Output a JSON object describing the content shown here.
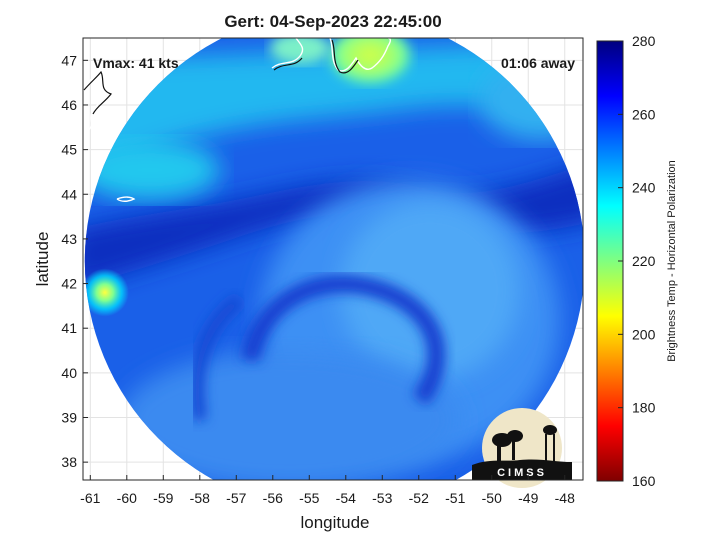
{
  "title": "Gert: 04-Sep-2023 22:45:00",
  "annotations": {
    "vmax": "Vmax: 41 kts",
    "time_away": "01:06 away"
  },
  "axes": {
    "xlabel": "longitude",
    "ylabel": "latitude",
    "xlim": [
      -61.2,
      -47.5
    ],
    "ylim": [
      37.6,
      47.5
    ],
    "xticks": [
      -61,
      -60,
      -59,
      -58,
      -57,
      -56,
      -55,
      -54,
      -53,
      -52,
      -51,
      -50,
      -49,
      -48
    ],
    "yticks": [
      38,
      39,
      40,
      41,
      42,
      43,
      44,
      45,
      46,
      47
    ],
    "grid": true
  },
  "colorbar": {
    "label": "Brightness Temp - Horizontal Polarization",
    "min": 160,
    "max": 280,
    "ticks": [
      160,
      180,
      200,
      220,
      240,
      260,
      280
    ],
    "colormap": "jet",
    "stops": [
      "#7f0000",
      "#ff0000",
      "#ff8000",
      "#ffff00",
      "#80ff80",
      "#00ffff",
      "#0080ff",
      "#0000ff",
      "#00007f"
    ]
  },
  "logo": {
    "text": "CIMSS"
  },
  "image": {
    "swath_center_lon": -54.3,
    "swath_center_lat": 42.5,
    "warm_blob_lon": -60.6,
    "warm_blob_lat": 41.8,
    "land_lon_range": [
      -56.0,
      -52.2
    ],
    "land_lat_range": [
      46.8,
      47.5
    ]
  }
}
